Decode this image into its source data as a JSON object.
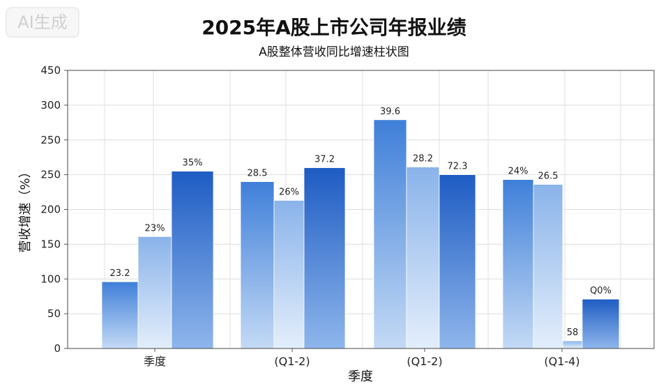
{
  "watermark": "AI生成",
  "chart_data": {
    "type": "bar",
    "title": "2025年A股上市公司年报业绩",
    "subtitle": "A股整体营收同比增速柱状图",
    "xlabel": "季度",
    "ylabel": "营收增速（%）",
    "y_ticks": [
      "0",
      "50",
      "100",
      "150",
      "200",
      "250",
      "250",
      "300",
      "450"
    ],
    "ylim": [
      0,
      400
    ],
    "grid": true,
    "categories": [
      "季度",
      "(Q1-2)",
      "(Q1-2)",
      "(Q1-4)"
    ],
    "groups": [
      {
        "values": [
          96,
          161,
          255
        ],
        "labels": [
          "23.2",
          "23%",
          "35%"
        ]
      },
      {
        "values": [
          240,
          213,
          260
        ],
        "labels": [
          "28.5",
          "26%",
          "37.2"
        ]
      },
      {
        "values": [
          329,
          261,
          250
        ],
        "labels": [
          "39.6",
          "28.2",
          "72.3"
        ]
      },
      {
        "values": [
          243,
          236,
          11,
          71
        ],
        "labels": [
          "24%",
          "26.5",
          "58",
          "Q0%"
        ]
      }
    ],
    "colors": {
      "light": "#dbe8f8",
      "mid": "#6a9be0",
      "dark": "#2a68c8",
      "darkest": "#1651b8"
    }
  }
}
